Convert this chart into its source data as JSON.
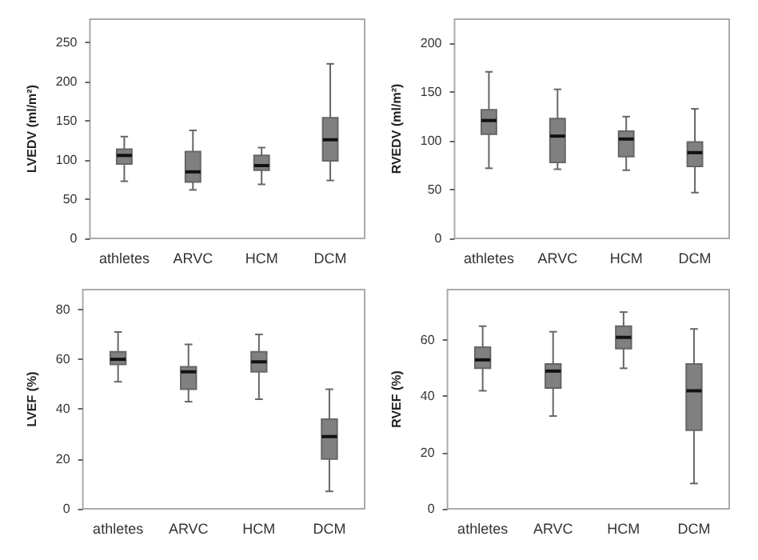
{
  "chart_data": [
    {
      "type": "box",
      "categories": [
        "athletes",
        "ARVC",
        "HCM",
        "DCM"
      ],
      "ylabel": "LVEDV (ml/m²)",
      "ylim": [
        0,
        280
      ],
      "yticks": [
        0,
        50,
        100,
        150,
        200,
        250
      ],
      "color": "#808080",
      "boxes": [
        {
          "low": 73,
          "q1": 95,
          "median": 106,
          "q3": 114,
          "high": 130
        },
        {
          "low": 62,
          "q1": 72,
          "median": 85,
          "q3": 111,
          "high": 138
        },
        {
          "low": 69,
          "q1": 87,
          "median": 93,
          "q3": 106,
          "high": 116
        },
        {
          "low": 74,
          "q1": 99,
          "median": 126,
          "q3": 154,
          "high": 223
        }
      ]
    },
    {
      "type": "box",
      "categories": [
        "athletes",
        "ARVC",
        "HCM",
        "DCM"
      ],
      "ylabel": "RVEDV (ml/m²)",
      "ylim": [
        0,
        225
      ],
      "yticks": [
        0,
        50,
        100,
        150,
        200
      ],
      "color": "#808080",
      "boxes": [
        {
          "low": 72,
          "q1": 107,
          "median": 121,
          "q3": 132,
          "high": 171
        },
        {
          "low": 71,
          "q1": 78,
          "median": 105,
          "q3": 123,
          "high": 153
        },
        {
          "low": 70,
          "q1": 84,
          "median": 102,
          "q3": 110,
          "high": 125
        },
        {
          "low": 47,
          "q1": 74,
          "median": 88,
          "q3": 99,
          "high": 133
        }
      ]
    },
    {
      "type": "box",
      "categories": [
        "athletes",
        "ARVC",
        "HCM",
        "DCM"
      ],
      "ylabel": "LVEF (%)",
      "ylim": [
        0,
        88
      ],
      "yticks": [
        0,
        20,
        40,
        60,
        80
      ],
      "color": "#808080",
      "boxes": [
        {
          "low": 51,
          "q1": 58,
          "median": 60,
          "q3": 63,
          "high": 71
        },
        {
          "low": 43,
          "q1": 48,
          "median": 55,
          "q3": 57,
          "high": 66
        },
        {
          "low": 44,
          "q1": 55,
          "median": 59,
          "q3": 63,
          "high": 70
        },
        {
          "low": 7,
          "q1": 20,
          "median": 29,
          "q3": 36,
          "high": 48
        }
      ]
    },
    {
      "type": "box",
      "categories": [
        "athletes",
        "ARVC",
        "HCM",
        "DCM"
      ],
      "ylabel": "RVEF (%)",
      "ylim": [
        0,
        78
      ],
      "yticks": [
        0,
        20,
        40,
        60
      ],
      "color": "#808080",
      "boxes": [
        {
          "low": 42,
          "q1": 50,
          "median": 53,
          "q3": 57.5,
          "high": 65
        },
        {
          "low": 33,
          "q1": 43,
          "median": 49,
          "q3": 51.5,
          "high": 63
        },
        {
          "low": 50,
          "q1": 57,
          "median": 61,
          "q3": 65,
          "high": 70
        },
        {
          "low": 9,
          "q1": 28,
          "median": 42,
          "q3": 51.5,
          "high": 64
        }
      ]
    }
  ]
}
